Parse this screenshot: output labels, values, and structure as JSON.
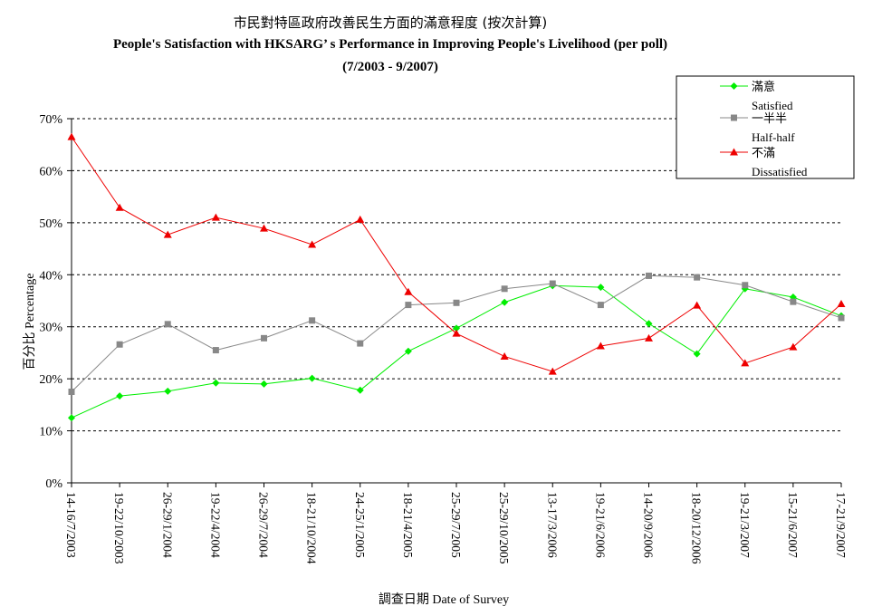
{
  "chart_data": {
    "type": "line",
    "title_zh": "市民對特區政府改善民生方面的滿意程度 (按次計算)",
    "title": "People's Satisfaction with HKSARG’ s Performance in Improving People's Livelihood (per poll)",
    "subtitle": "(7/2003 - 9/2007)",
    "xlabel": "調查日期 Date of Survey",
    "ylabel": "百分比 Percentage",
    "ylim": [
      0,
      70
    ],
    "yticks": [
      "0%",
      "10%",
      "20%",
      "30%",
      "40%",
      "50%",
      "60%",
      "70%"
    ],
    "grid": true,
    "legend_position": "top-right",
    "categories": [
      "14-16/7/2003",
      "19-22/10/2003",
      "26-29/1/2004",
      "19-22/4/2004",
      "26-29/7/2004",
      "18-21/10/2004",
      "24-25/1/2005",
      "18-21/4/2005",
      "25-29/7/2005",
      "25-29/10/2005",
      "13-17/3/2006",
      "19-21/6/2006",
      "14-20/9/2006",
      "18-20/12/2006",
      "19-21/3/2007",
      "15-21/6/2007",
      "17-21/9/2007"
    ],
    "series": [
      {
        "name_zh": "滿意",
        "name": "Satisfied",
        "color": "#00ee00",
        "marker": "diamond",
        "values": [
          12.5,
          16.7,
          17.6,
          19.2,
          19.0,
          20.1,
          17.8,
          25.3,
          29.7,
          34.7,
          37.9,
          37.6,
          30.6,
          24.8,
          37.3,
          35.7,
          32.1
        ]
      },
      {
        "name_zh": "一半半",
        "name": "Half-half",
        "color": "#888888",
        "marker": "square",
        "values": [
          17.5,
          26.6,
          30.5,
          25.5,
          27.8,
          31.2,
          26.8,
          34.2,
          34.6,
          37.3,
          38.3,
          34.2,
          39.8,
          39.5,
          38.0,
          34.8,
          31.7
        ]
      },
      {
        "name_zh": "不滿",
        "name": "Dissatisfied",
        "color": "#ee0000",
        "marker": "triangle",
        "values": [
          66.5,
          52.9,
          47.7,
          51.0,
          48.9,
          45.8,
          50.6,
          36.7,
          28.7,
          24.3,
          21.4,
          26.3,
          27.8,
          34.1,
          23.0,
          26.1,
          34.4
        ]
      }
    ]
  }
}
